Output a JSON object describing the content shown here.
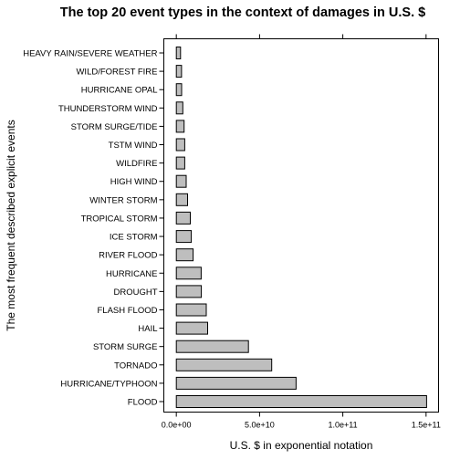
{
  "chart_data": {
    "type": "bar",
    "orientation": "horizontal",
    "title": "The top 20 event types in the context of damages in U.S. $",
    "xlabel": "U.S. $ in exponential notation",
    "ylabel": "The most frequent described explicit events",
    "xlim": [
      -7500000000.0,
      157500000000.0
    ],
    "x_ticks": [
      0,
      50000000000.0,
      100000000000.0,
      150000000000.0
    ],
    "x_tick_labels": [
      "0.0e+00",
      "5.0e+10",
      "1.0e+11",
      "1.5e+11"
    ],
    "bar_color": "#bebebe",
    "categories": [
      "FLOOD",
      "HURRICANE/TYPHOON",
      "TORNADO",
      "STORM SURGE",
      "HAIL",
      "FLASH FLOOD",
      "DROUGHT",
      "HURRICANE",
      "RIVER FLOOD",
      "ICE STORM",
      "TROPICAL STORM",
      "WINTER STORM",
      "HIGH WIND",
      "WILDFIRE",
      "TSTM WIND",
      "STORM SURGE/TIDE",
      "THUNDERSTORM WIND",
      "HURRICANE OPAL",
      "WILD/FOREST FIRE",
      "HEAVY RAIN/SEVERE WEATHER"
    ],
    "values": [
      150300000000.0,
      71900000000.0,
      57300000000.0,
      43300000000.0,
      18800000000.0,
      18000000000.0,
      15000000000.0,
      14900000000.0,
      10100000000.0,
      8970000000.0,
      8380000000.0,
      6720000000.0,
      5910000000.0,
      5060000000.0,
      5040000000.0,
      4640000000.0,
      3900000000.0,
      3190000000.0,
      3110000000.0,
      2500000000.0
    ]
  }
}
